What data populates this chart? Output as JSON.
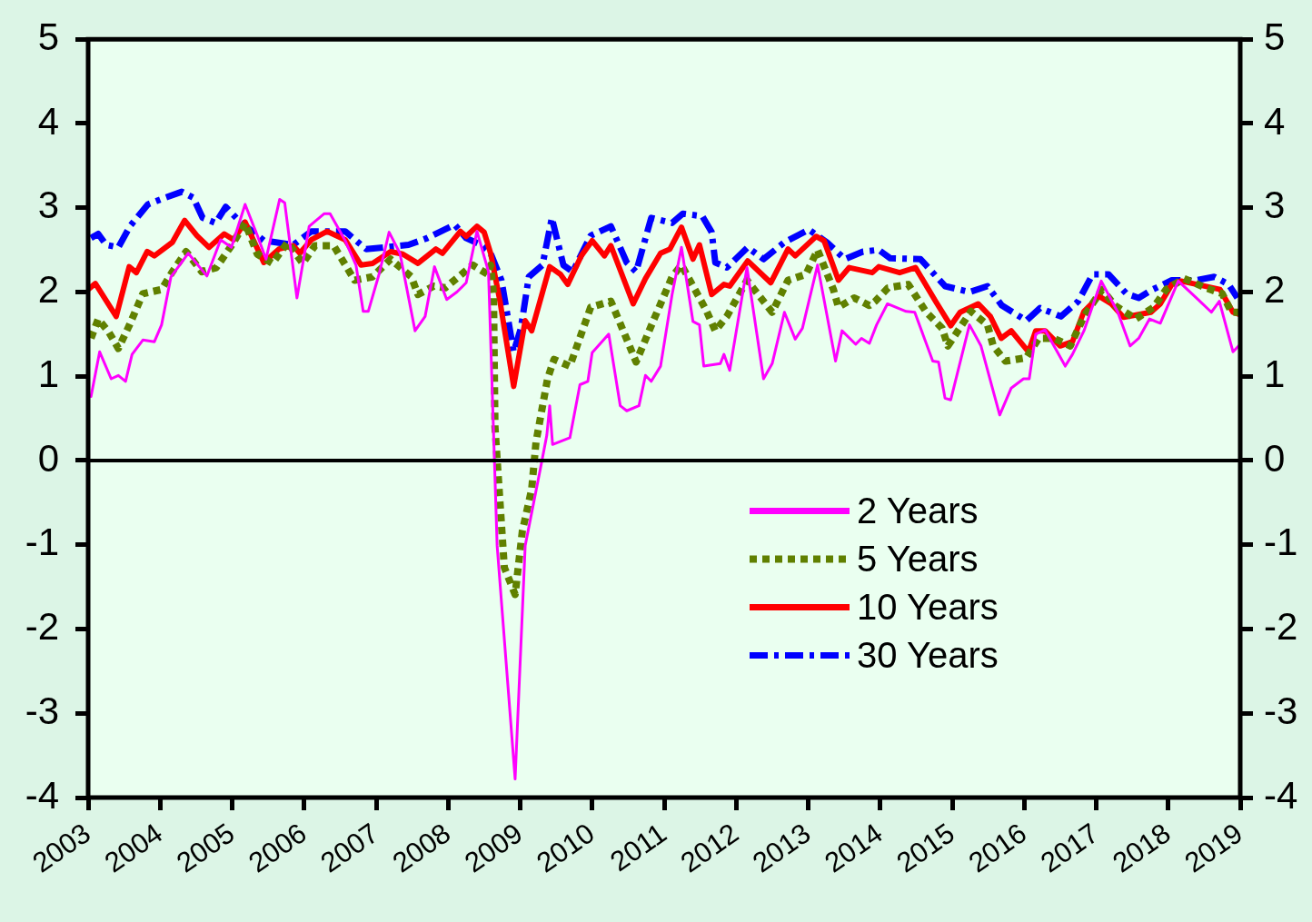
{
  "chart_data": {
    "type": "line",
    "xlim": [
      2003,
      2019
    ],
    "xticks": [
      2003,
      2004,
      2005,
      2006,
      2007,
      2008,
      2009,
      2010,
      2011,
      2012,
      2013,
      2014,
      2015,
      2016,
      2017,
      2018,
      2019
    ],
    "ylim": [
      -4,
      5
    ],
    "yticks": [
      -4,
      -3,
      -2,
      -1,
      0,
      1,
      2,
      3,
      4,
      5
    ],
    "y2lim": [
      -4,
      5
    ],
    "y2ticks": [
      -4,
      -3,
      -2,
      -1,
      0,
      1,
      2,
      3,
      4,
      5
    ],
    "grid": false,
    "legend": "bottom right",
    "marker": "none",
    "ref_lines": [
      {
        "axis": "y",
        "value": 0,
        "color": "#000000",
        "line_style": "solid"
      }
    ],
    "series": [
      {
        "name": "2 Years",
        "color": "#ff00ff",
        "line_style": "solid",
        "x": [
          2003.04,
          2003.16,
          2003.32,
          2003.42,
          2003.52,
          2003.61,
          2003.76,
          2003.92,
          2004.02,
          2004.15,
          2004.39,
          2004.65,
          2004.84,
          2004.99,
          2005.18,
          2005.35,
          2005.47,
          2005.66,
          2005.73,
          2005.9,
          2006.07,
          2006.28,
          2006.36,
          2006.57,
          2006.72,
          2006.82,
          2006.89,
          2007.04,
          2007.18,
          2007.33,
          2007.54,
          2007.68,
          2007.81,
          2007.98,
          2008.12,
          2008.25,
          2008.4,
          2008.56,
          2008.68,
          2008.93,
          2009.07,
          2009.28,
          2009.37,
          2009.41,
          2009.45,
          2009.69,
          2009.83,
          2009.94,
          2010.0,
          2010.23,
          2010.39,
          2010.48,
          2010.65,
          2010.74,
          2010.82,
          2010.95,
          2011.11,
          2011.24,
          2011.4,
          2011.49,
          2011.55,
          2011.78,
          2011.83,
          2011.91,
          2012.15,
          2012.38,
          2012.5,
          2012.67,
          2012.82,
          2012.92,
          2013.13,
          2013.38,
          2013.47,
          2013.66,
          2013.74,
          2013.85,
          2013.95,
          2014.1,
          2014.36,
          2014.48,
          2014.73,
          2014.81,
          2014.9,
          2014.98,
          2015.24,
          2015.4,
          2015.66,
          2015.82,
          2015.99,
          2016.07,
          2016.16,
          2016.29,
          2016.57,
          2016.67,
          2016.83,
          2017.07,
          2017.3,
          2017.47,
          2017.59,
          2017.74,
          2017.89,
          2018.14,
          2018.39,
          2018.6,
          2018.71,
          2018.9,
          2019.0
        ],
        "values": [
          0.76,
          1.29,
          0.97,
          1.01,
          0.94,
          1.26,
          1.43,
          1.41,
          1.61,
          2.18,
          2.46,
          2.19,
          2.62,
          2.53,
          3.04,
          2.67,
          2.39,
          3.1,
          3.06,
          1.93,
          2.78,
          2.93,
          2.93,
          2.61,
          2.32,
          1.77,
          1.77,
          2.21,
          2.71,
          2.46,
          1.54,
          1.71,
          2.3,
          1.91,
          2.0,
          2.11,
          2.72,
          2.24,
          -1.01,
          -3.78,
          -1.01,
          -0.1,
          0.3,
          0.65,
          0.19,
          0.27,
          0.9,
          0.94,
          1.28,
          1.5,
          0.65,
          0.59,
          0.65,
          1.01,
          0.94,
          1.12,
          1.97,
          2.53,
          1.65,
          1.61,
          1.12,
          1.15,
          1.26,
          1.07,
          2.29,
          0.97,
          1.15,
          1.76,
          1.44,
          1.57,
          2.32,
          1.18,
          1.54,
          1.38,
          1.45,
          1.39,
          1.61,
          1.86,
          1.77,
          1.76,
          1.18,
          1.17,
          0.74,
          0.72,
          1.61,
          1.36,
          0.54,
          0.86,
          0.97,
          0.97,
          1.5,
          1.55,
          1.12,
          1.26,
          1.54,
          2.13,
          1.76,
          1.36,
          1.45,
          1.68,
          1.63,
          2.13,
          1.93,
          1.76,
          1.89,
          1.29,
          1.38
        ]
      },
      {
        "name": "5 Years",
        "color": "#608000",
        "line_style": "dotted",
        "x": [
          2003.04,
          2003.14,
          2003.29,
          2003.42,
          2003.57,
          2003.76,
          2004.02,
          2004.17,
          2004.36,
          2004.58,
          2004.78,
          2004.99,
          2005.18,
          2005.35,
          2005.56,
          2005.77,
          2005.98,
          2006.15,
          2006.41,
          2006.7,
          2006.95,
          2007.2,
          2007.49,
          2007.58,
          2007.8,
          2007.96,
          2008.34,
          2008.55,
          2008.59,
          2008.63,
          2008.65,
          2008.78,
          2008.93,
          2009.03,
          2009.16,
          2009.22,
          2009.38,
          2009.47,
          2009.69,
          2009.98,
          2010.26,
          2010.48,
          2010.61,
          2010.86,
          2011.11,
          2011.24,
          2011.58,
          2011.71,
          2011.87,
          2012.15,
          2012.38,
          2012.5,
          2012.72,
          2012.97,
          2013.13,
          2013.35,
          2013.42,
          2013.64,
          2013.85,
          2013.93,
          2014.11,
          2014.39,
          2014.64,
          2014.86,
          2014.94,
          2015.26,
          2015.49,
          2015.57,
          2015.74,
          2016.03,
          2016.2,
          2016.41,
          2016.64,
          2016.83,
          2017.08,
          2017.26,
          2017.55,
          2017.8,
          2017.97,
          2018.22,
          2018.52,
          2018.75,
          2018.88,
          2019.0
        ],
        "values": [
          1.45,
          1.68,
          1.52,
          1.33,
          1.6,
          1.98,
          2.03,
          2.24,
          2.48,
          2.24,
          2.29,
          2.55,
          2.82,
          2.45,
          2.34,
          2.59,
          2.34,
          2.55,
          2.55,
          2.14,
          2.18,
          2.39,
          2.18,
          1.97,
          2.07,
          2.05,
          2.32,
          2.21,
          2.32,
          1.97,
          0.4,
          -1.27,
          -1.59,
          -0.84,
          -0.34,
          0.22,
          0.97,
          1.2,
          1.12,
          1.82,
          1.89,
          1.44,
          1.17,
          1.68,
          2.18,
          2.32,
          1.79,
          1.54,
          1.71,
          2.14,
          1.89,
          1.76,
          2.14,
          2.21,
          2.5,
          2.03,
          1.82,
          1.93,
          1.84,
          1.89,
          2.05,
          2.09,
          1.76,
          1.57,
          1.36,
          1.77,
          1.61,
          1.36,
          1.18,
          1.22,
          1.45,
          1.45,
          1.36,
          1.71,
          2.03,
          1.84,
          1.68,
          1.82,
          2.03,
          2.16,
          2.05,
          1.98,
          1.76,
          1.76
        ]
      },
      {
        "name": "10 Years",
        "color": "#ff0000",
        "line_style": "solid",
        "x": [
          2003.0,
          2003.1,
          2003.39,
          2003.57,
          2003.67,
          2003.82,
          2003.92,
          2004.17,
          2004.34,
          2004.51,
          2004.68,
          2004.89,
          2005.02,
          2005.18,
          2005.44,
          2005.65,
          2005.85,
          2005.94,
          2006.1,
          2006.32,
          2006.57,
          2006.79,
          2006.95,
          2007.2,
          2007.37,
          2007.58,
          2007.83,
          2007.92,
          2008.17,
          2008.25,
          2008.4,
          2008.5,
          2008.59,
          2008.72,
          2008.91,
          2009.07,
          2009.16,
          2009.41,
          2009.56,
          2009.66,
          2009.85,
          2010.0,
          2010.17,
          2010.26,
          2010.57,
          2010.74,
          2010.95,
          2011.08,
          2011.24,
          2011.4,
          2011.49,
          2011.66,
          2011.83,
          2011.91,
          2012.16,
          2012.48,
          2012.72,
          2012.82,
          2013.11,
          2013.22,
          2013.42,
          2013.57,
          2013.89,
          2013.98,
          2014.27,
          2014.49,
          2014.77,
          2014.98,
          2015.11,
          2015.36,
          2015.53,
          2015.68,
          2015.82,
          2016.06,
          2016.16,
          2016.29,
          2016.5,
          2016.67,
          2016.83,
          2017.04,
          2017.21,
          2017.38,
          2017.76,
          2017.89,
          2018.05,
          2018.18,
          2018.72,
          2018.9,
          2019.0
        ],
        "values": [
          2.03,
          2.1,
          1.71,
          2.3,
          2.23,
          2.48,
          2.43,
          2.59,
          2.85,
          2.67,
          2.53,
          2.69,
          2.62,
          2.83,
          2.35,
          2.51,
          2.55,
          2.46,
          2.62,
          2.72,
          2.62,
          2.32,
          2.34,
          2.48,
          2.45,
          2.34,
          2.51,
          2.46,
          2.72,
          2.66,
          2.78,
          2.71,
          2.46,
          1.89,
          0.88,
          1.66,
          1.54,
          2.3,
          2.21,
          2.09,
          2.43,
          2.61,
          2.43,
          2.55,
          1.86,
          2.16,
          2.46,
          2.51,
          2.77,
          2.39,
          2.56,
          1.97,
          2.09,
          2.07,
          2.37,
          2.11,
          2.51,
          2.43,
          2.66,
          2.61,
          2.14,
          2.29,
          2.23,
          2.3,
          2.23,
          2.29,
          1.89,
          1.6,
          1.76,
          1.86,
          1.71,
          1.45,
          1.54,
          1.29,
          1.54,
          1.54,
          1.36,
          1.41,
          1.77,
          1.95,
          1.86,
          1.7,
          1.76,
          1.86,
          2.09,
          2.13,
          2.03,
          1.76,
          1.73
        ]
      },
      {
        "name": "30 Years",
        "color": "#0000ff",
        "line_style": "dashed",
        "x": [
          2003.04,
          2003.14,
          2003.25,
          2003.42,
          2003.58,
          2003.83,
          2004.07,
          2004.3,
          2004.46,
          2004.59,
          2004.77,
          2004.91,
          2005.09,
          2005.44,
          2005.85,
          2006.1,
          2006.57,
          2006.86,
          2007.11,
          2007.45,
          2007.71,
          2008.09,
          2008.25,
          2008.46,
          2008.59,
          2008.74,
          2008.91,
          2009.01,
          2009.12,
          2009.31,
          2009.44,
          2009.6,
          2009.73,
          2009.98,
          2010.26,
          2010.48,
          2010.61,
          2010.82,
          2011.11,
          2011.26,
          2011.53,
          2011.66,
          2011.71,
          2011.87,
          2012.16,
          2012.38,
          2012.67,
          2013.01,
          2013.26,
          2013.51,
          2013.76,
          2013.98,
          2014.14,
          2014.56,
          2014.9,
          2015.24,
          2015.49,
          2015.69,
          2016.03,
          2016.22,
          2016.51,
          2016.75,
          2016.95,
          2017.17,
          2017.42,
          2017.59,
          2017.76,
          2018.05,
          2018.39,
          2018.64,
          2018.84,
          2018.96
        ],
        "values": [
          2.64,
          2.69,
          2.56,
          2.53,
          2.78,
          3.04,
          3.12,
          3.19,
          3.12,
          2.88,
          2.82,
          3.01,
          2.85,
          2.61,
          2.56,
          2.72,
          2.72,
          2.51,
          2.53,
          2.56,
          2.64,
          2.8,
          2.64,
          2.56,
          2.46,
          2.14,
          1.29,
          1.57,
          2.18,
          2.32,
          2.88,
          2.32,
          2.24,
          2.67,
          2.78,
          2.35,
          2.24,
          2.88,
          2.82,
          2.93,
          2.9,
          2.71,
          2.35,
          2.29,
          2.53,
          2.39,
          2.59,
          2.74,
          2.59,
          2.39,
          2.48,
          2.5,
          2.4,
          2.39,
          2.07,
          2.0,
          2.07,
          1.84,
          1.66,
          1.81,
          1.71,
          1.89,
          2.21,
          2.21,
          1.98,
          1.93,
          2.02,
          2.14,
          2.14,
          2.18,
          2.09,
          1.93
        ]
      }
    ]
  }
}
